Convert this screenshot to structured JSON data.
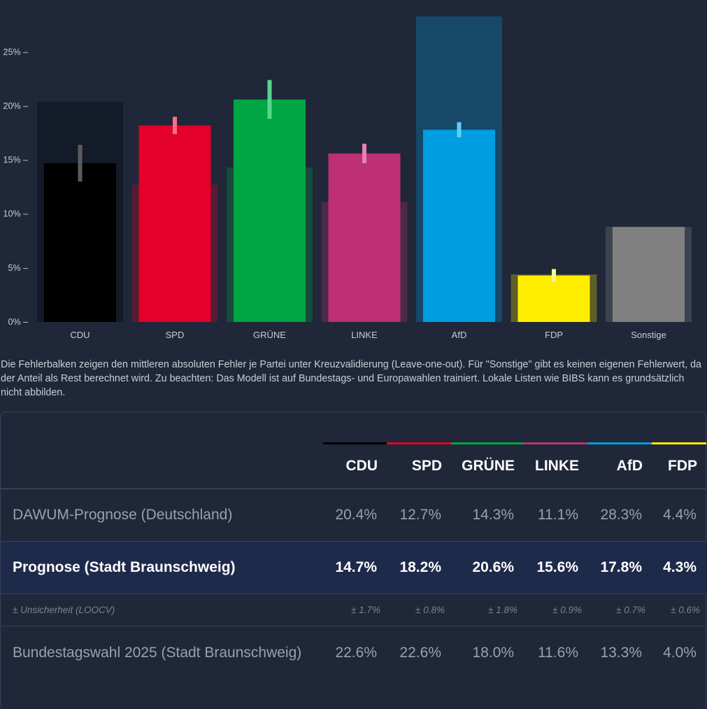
{
  "chart_data": {
    "type": "bar",
    "categories": [
      "CDU",
      "SPD",
      "GRÜNE",
      "LINKE",
      "AfD",
      "FDP",
      "Sonstige"
    ],
    "colors": [
      "#000000",
      "#e3002b",
      "#00a643",
      "#bd3075",
      "#009ee0",
      "#ffed00",
      "#808080"
    ],
    "error_colors": [
      "#5c5c5c",
      "#ff6f8a",
      "#57d68c",
      "#ec7fb2",
      "#5fcdf5",
      "#fff68a",
      null
    ],
    "series": [
      {
        "name": "",
        "values": [
          14.7,
          18.2,
          20.6,
          15.6,
          17.8,
          4.3,
          8.8
        ]
      },
      {
        "name": "",
        "values": [
          20.4,
          12.7,
          14.3,
          11.1,
          28.3,
          4.4,
          8.8
        ]
      }
    ],
    "errors": [
      1.7,
      0.8,
      1.8,
      0.9,
      0.7,
      0.6,
      null
    ],
    "yticks": [
      0,
      5,
      10,
      15,
      20,
      25
    ],
    "ytick_labels": [
      "0% –",
      "5% –",
      "10% –",
      "15% –",
      "20% –",
      "25% –"
    ],
    "ylim": [
      0,
      28.3
    ],
    "title": "",
    "xlabel": "",
    "ylabel": "",
    "grid": false
  },
  "note": "Die Fehlerbalken zeigen den mittleren absoluten Fehler je Partei unter Kreuzvalidierung (Leave-one-out). Für \"Sonstige\" gibt es keinen eigenen Fehlerwert, da der Anteil als Rest berechnet wird. Zu beachten: Das Modell ist auf Bundestags- und Europawahlen trainiert. Lokale Listen wie BIBS kann es grundsätzlich nicht abbilden.",
  "table": {
    "headers": [
      "CDU",
      "SPD",
      "GRÜNE",
      "LINKE",
      "AfD",
      "FDP"
    ],
    "header_colors": [
      "#000000",
      "#e3002b",
      "#00a643",
      "#bd3075",
      "#009ee0",
      "#ffed00"
    ],
    "rows": {
      "dawum": {
        "label": "DAWUM-Prognose (Deutschland)",
        "values": [
          "20.4%",
          "12.7%",
          "14.3%",
          "11.1%",
          "28.3%",
          "4.4%"
        ]
      },
      "prognose": {
        "label": "Prognose (Stadt Braunschweig)",
        "values": [
          "14.7%",
          "18.2%",
          "20.6%",
          "15.6%",
          "17.8%",
          "4.3%"
        ]
      },
      "unsicherheit": {
        "label": "± Unsicherheit (LOOCV)",
        "values": [
          "± 1.7%",
          "± 0.8%",
          "± 1.8%",
          "± 0.9%",
          "± 0.7%",
          "± 0.6%"
        ]
      },
      "btw": {
        "label": "Bundestagswahl 2025 (Stadt Braunschweig)",
        "values": [
          "22.6%",
          "22.6%",
          "18.0%",
          "11.6%",
          "13.3%",
          "4.0%"
        ]
      }
    }
  }
}
